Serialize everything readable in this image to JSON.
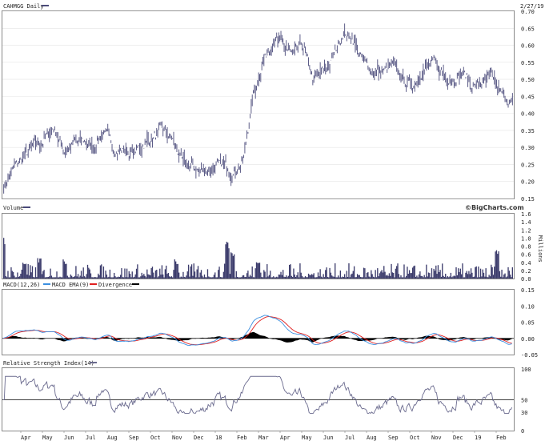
{
  "chart_data": [
    {
      "type": "candlestick",
      "title": "CAHMGG Daily",
      "date_label": "2/27/19",
      "ylim": [
        0.15,
        0.7
      ],
      "yticks": [
        "0.70",
        "0.65",
        "0.60",
        "0.55",
        "0.50",
        "0.45",
        "0.40",
        "0.35",
        "0.30",
        "0.25",
        "0.20",
        "0.15"
      ],
      "x_labels": [
        "Apr",
        "May",
        "Jun",
        "Jul",
        "Aug",
        "Sep",
        "Oct",
        "Nov",
        "Dec",
        "18",
        "Feb",
        "Mar",
        "Apr",
        "May",
        "Jun",
        "Jul",
        "Aug",
        "Sep",
        "Oct",
        "Nov",
        "Dec",
        "19",
        "Feb"
      ],
      "close_approx": [
        0.18,
        0.24,
        0.27,
        0.3,
        0.32,
        0.36,
        0.29,
        0.31,
        0.32,
        0.3,
        0.35,
        0.3,
        0.29,
        0.28,
        0.31,
        0.33,
        0.35,
        0.32,
        0.25,
        0.24,
        0.23,
        0.24,
        0.25,
        0.23,
        0.26,
        0.45,
        0.55,
        0.62,
        0.6,
        0.57,
        0.6,
        0.5,
        0.52,
        0.56,
        0.64,
        0.62,
        0.55,
        0.53,
        0.52,
        0.54,
        0.5,
        0.48,
        0.53,
        0.55,
        0.52,
        0.5,
        0.52,
        0.48,
        0.49,
        0.5,
        0.45,
        0.43
      ]
    },
    {
      "type": "bar",
      "title": "Volume",
      "brand": "©BigCharts.com",
      "unit_label": "Millions",
      "ylim": [
        0,
        1.6
      ],
      "yticks": [
        "1.6",
        "1.4",
        "1.2",
        "1.0",
        "0.8",
        "0.6",
        "0.4",
        "0.2",
        "0.0"
      ],
      "spikes_approx": [
        [
          0.0,
          1.05
        ],
        [
          0.04,
          0.45
        ],
        [
          0.07,
          0.55
        ],
        [
          0.12,
          0.5
        ],
        [
          0.34,
          0.48
        ],
        [
          0.44,
          1.0
        ],
        [
          0.45,
          0.75
        ],
        [
          0.5,
          0.45
        ],
        [
          0.97,
          0.7
        ]
      ]
    },
    {
      "type": "line",
      "title": "MACD(12,26)",
      "legend": [
        {
          "name": "MACD EMA(9)",
          "color": "#3b8fe0"
        },
        {
          "name": "Divergence",
          "color": "#000000"
        }
      ],
      "macd_color": "#e02020",
      "ylim": [
        -0.05,
        0.15
      ],
      "yticks": [
        "0.15",
        "0.10",
        "0.05",
        "0.00",
        "-0.05"
      ]
    },
    {
      "type": "line",
      "title": "Relative Strength Index(14)",
      "ylim": [
        0,
        100
      ],
      "yticks": [
        "100",
        "50",
        "30",
        "0"
      ],
      "reference": 50,
      "color": "#6a6a8e"
    }
  ]
}
